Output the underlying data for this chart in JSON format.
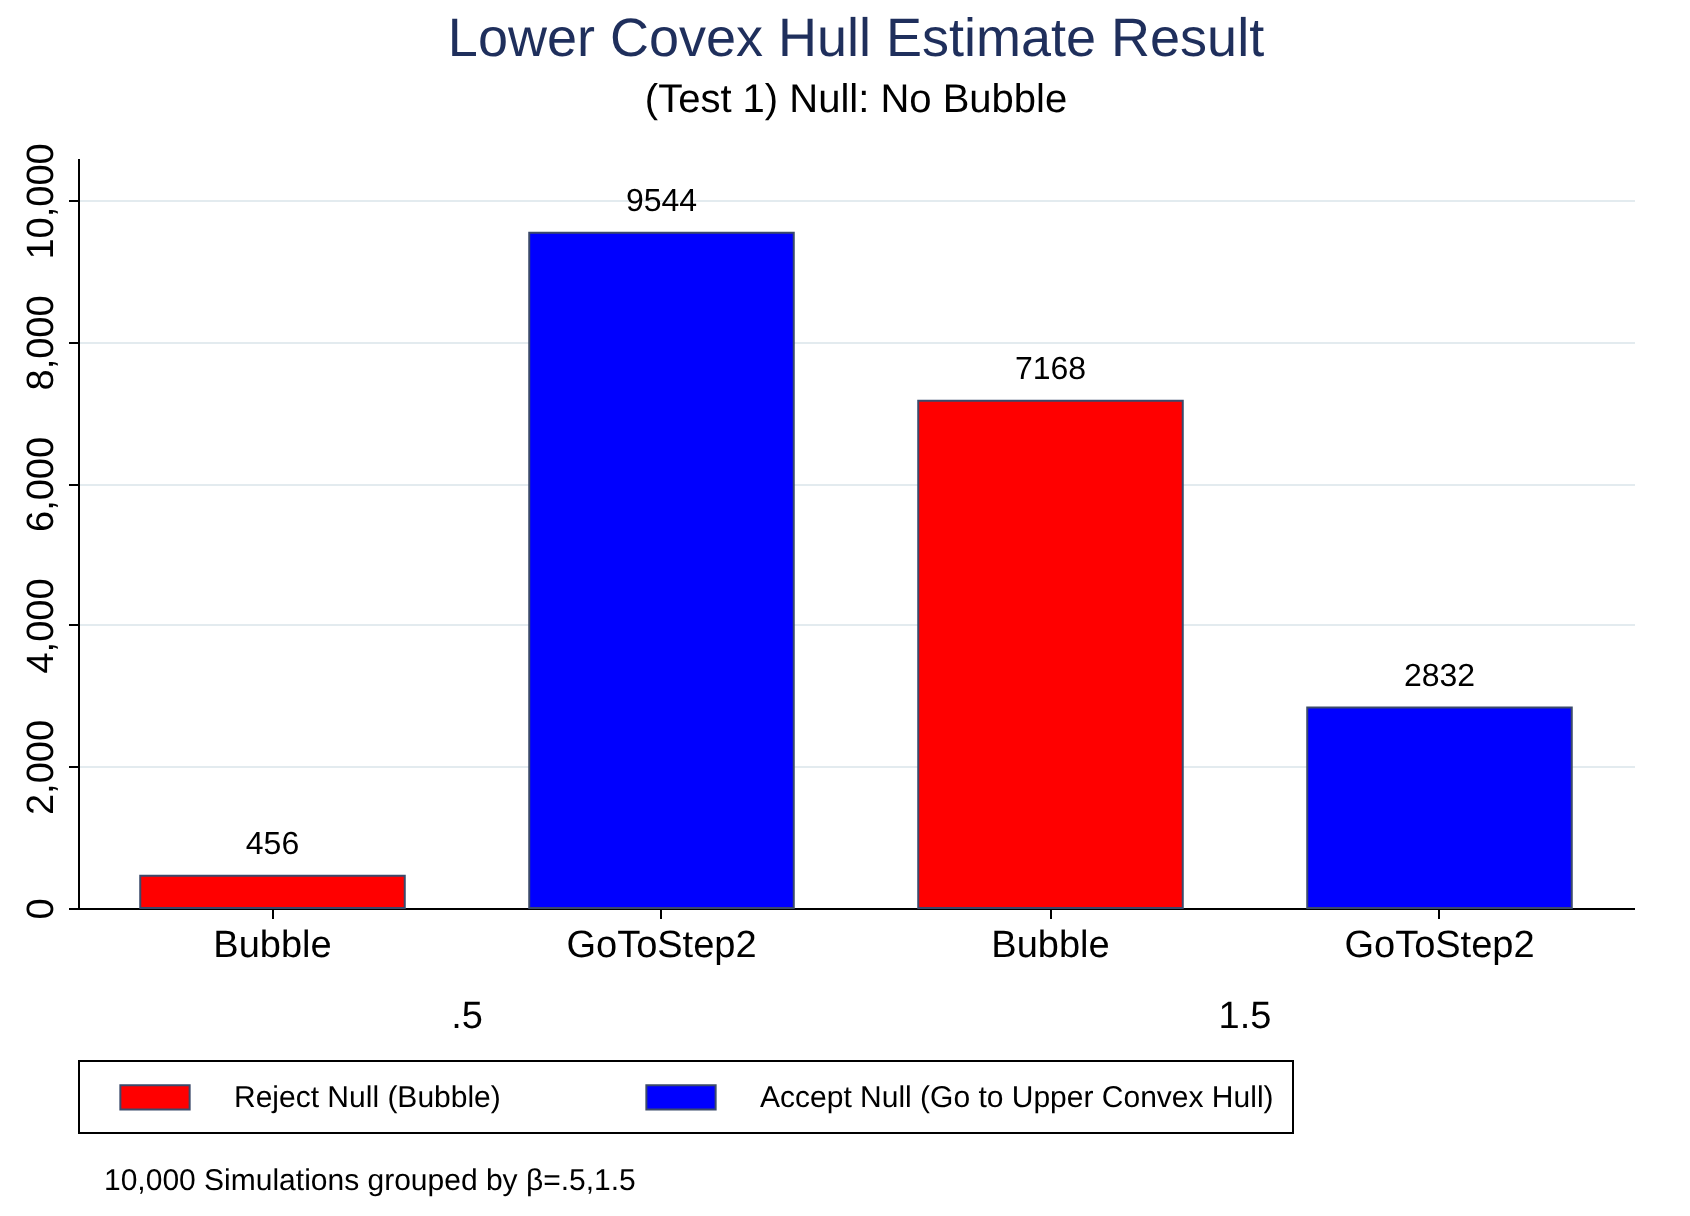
{
  "chart_data": {
    "type": "bar",
    "title": "Lower Covex Hull Estimate Result",
    "subtitle": "(Test 1) Null: No Bubble",
    "categories": [
      "Bubble",
      "GoToStep2",
      "Bubble",
      "GoToStep2"
    ],
    "series": [
      {
        "name": "Reject Null (Bubble)",
        "color": "#ff0000",
        "values": [
          456,
          null,
          7168,
          null
        ]
      },
      {
        "name": "Accept Null (Go to Upper Convex Hull)",
        "color": "#0000ff",
        "values": [
          null,
          9544,
          null,
          2832
        ]
      }
    ],
    "ylim": [
      0,
      10600
    ],
    "yticks": [
      0,
      {
        "value": 2000,
        "label": "2,000"
      },
      {
        "value": 4000,
        "label": "4,000"
      },
      {
        "value": 6000,
        "label": "6,000"
      },
      {
        "value": 8000,
        "label": "8,000"
      },
      {
        "value": 10000,
        "label": "10,000"
      }
    ],
    "grid": "y",
    "legend": "bottom",
    "data_labels": true,
    "annotations": [
      ".5",
      "1.5",
      "10,000 Simulations grouped by β=.5,1.5"
    ]
  }
}
